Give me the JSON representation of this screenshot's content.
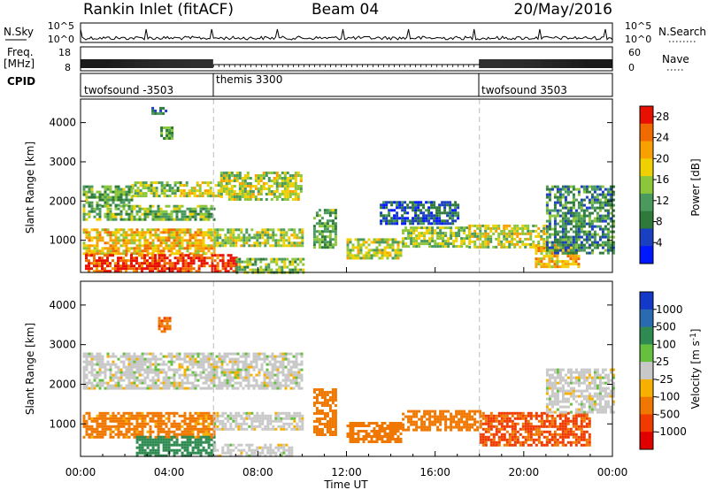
{
  "header": {
    "station": "Rankin Inlet (fitACF)",
    "beam": "Beam 04",
    "date": "20/May/2016"
  },
  "nsky_panel": {
    "left_label": "N.Sky",
    "right_label": "N.Search",
    "left_ticks": [
      "10^5",
      "10^0"
    ],
    "right_ticks": [
      "10^5",
      "10^0"
    ],
    "colors": {
      "nsky": "#000000",
      "nsearch": "#000000"
    }
  },
  "freq_panel": {
    "left_label_top": "Freq.",
    "left_label_unit": "[MHz]",
    "right_label": "Nave",
    "left_ticks": [
      "18",
      "8"
    ],
    "right_ticks": [
      "60",
      "0"
    ]
  },
  "cpid_panel": {
    "label": "CPID",
    "programs": [
      {
        "name": "twofsound -3503",
        "start_hour": 0
      },
      {
        "name": "themis 3300",
        "start_hour": 6
      },
      {
        "name": "twofsound 3503",
        "start_hour": 18
      }
    ]
  },
  "time_axis": {
    "label": "Time UT",
    "tick_labels": [
      "00:00",
      "04:00",
      "08:00",
      "12:00",
      "16:00",
      "20:00",
      "00:00"
    ]
  },
  "chart_data": [
    {
      "type": "heatmap",
      "name": "power",
      "x_range_hours": [
        0,
        24
      ],
      "y_range_km": [
        180,
        4600
      ],
      "ylabel": "Slant Range [km]",
      "y_tick_labels": [
        "1000",
        "2000",
        "3000",
        "4000"
      ],
      "y_ticks": [
        1000,
        2000,
        3000,
        4000
      ],
      "colorbar": {
        "label": "Power [dB]",
        "tick_labels": [
          "28",
          "24",
          "20",
          "16",
          "12",
          "8",
          "4"
        ],
        "ticks": [
          28,
          24,
          20,
          16,
          12,
          8,
          4
        ],
        "range": [
          0,
          30
        ],
        "colors": [
          "#0018ff",
          "#1a3fc0",
          "#2e7a3a",
          "#4a9a5e",
          "#8cc63a",
          "#f0d000",
          "#f8a000",
          "#f06a00",
          "#e81000"
        ]
      },
      "regions": [
        {
          "t": [
            0.1,
            2.3
          ],
          "r": [
            1900,
            2400
          ],
          "v": 12
        },
        {
          "t": [
            2.3,
            4.5
          ],
          "r": [
            2150,
            2500
          ],
          "v": 14
        },
        {
          "t": [
            4.5,
            6.3
          ],
          "r": [
            2100,
            2500
          ],
          "v": 18
        },
        {
          "t": [
            6.3,
            9.9
          ],
          "r": [
            2050,
            2750
          ],
          "v": 16
        },
        {
          "t": [
            0.1,
            6.0
          ],
          "r": [
            1500,
            1900
          ],
          "v": 13
        },
        {
          "t": [
            0.1,
            6.0
          ],
          "r": [
            650,
            1300
          ],
          "v": 20
        },
        {
          "t": [
            6.0,
            10.0
          ],
          "r": [
            850,
            1300
          ],
          "v": 16
        },
        {
          "t": [
            0.2,
            3.5
          ],
          "r": [
            180,
            650
          ],
          "v": 27
        },
        {
          "t": [
            3.5,
            7.0
          ],
          "r": [
            180,
            650
          ],
          "v": 28
        },
        {
          "t": [
            7.0,
            10.0
          ],
          "r": [
            180,
            550
          ],
          "v": 14
        },
        {
          "t": [
            10.5,
            11.5
          ],
          "r": [
            800,
            1800
          ],
          "v": 12
        },
        {
          "t": [
            12.0,
            14.5
          ],
          "r": [
            550,
            1050
          ],
          "v": 16
        },
        {
          "t": [
            14.5,
            17.5
          ],
          "r": [
            850,
            1350
          ],
          "v": 15
        },
        {
          "t": [
            17.5,
            21.0
          ],
          "r": [
            850,
            1400
          ],
          "v": 17
        },
        {
          "t": [
            20.5,
            22.5
          ],
          "r": [
            350,
            900
          ],
          "v": 20
        },
        {
          "t": [
            21.0,
            24.0
          ],
          "r": [
            700,
            2400
          ],
          "v": 10
        },
        {
          "t": [
            13.5,
            17.0
          ],
          "r": [
            1400,
            2000
          ],
          "v": 6
        },
        {
          "t": [
            3.2,
            3.9
          ],
          "r": [
            4200,
            4400
          ],
          "v": 8
        },
        {
          "t": [
            3.6,
            4.1
          ],
          "r": [
            3600,
            3900
          ],
          "v": 12
        }
      ]
    },
    {
      "type": "heatmap",
      "name": "velocity",
      "x_range_hours": [
        0,
        24
      ],
      "y_range_km": [
        180,
        4600
      ],
      "ylabel": "Slant Range [km]",
      "y_tick_labels": [
        "1000",
        "2000",
        "3000",
        "4000"
      ],
      "y_ticks": [
        1000,
        2000,
        3000,
        4000
      ],
      "colorbar": {
        "label": "Velocity [m s-1]",
        "label_main": "Velocity [m s",
        "label_sup": "-1",
        "label_end": "]",
        "tick_labels": [
          "1000",
          "500",
          "100",
          "25",
          "-25",
          "-100",
          "-500",
          "-1000"
        ],
        "ticks": [
          1000,
          500,
          100,
          25,
          -25,
          -100,
          -500,
          -1000
        ],
        "colors": [
          "#1438c8",
          "#2a6ab0",
          "#2e8a50",
          "#66c040",
          "#c8c8c8",
          "#f8b000",
          "#f07800",
          "#f03a00",
          "#e00000"
        ]
      },
      "regions": [
        {
          "t": [
            0.1,
            10.0
          ],
          "r": [
            1900,
            2800
          ],
          "v": 0
        },
        {
          "t": [
            0.1,
            6.0
          ],
          "r": [
            650,
            1300
          ],
          "v": -150
        },
        {
          "t": [
            2.5,
            6.0
          ],
          "r": [
            180,
            700
          ],
          "v": 200
        },
        {
          "t": [
            6.0,
            10.0
          ],
          "r": [
            850,
            1300
          ],
          "v": 0
        },
        {
          "t": [
            6.0,
            9.5
          ],
          "r": [
            180,
            500
          ],
          "v": 0
        },
        {
          "t": [
            10.5,
            11.5
          ],
          "r": [
            700,
            1900
          ],
          "v": -300
        },
        {
          "t": [
            12.0,
            14.5
          ],
          "r": [
            550,
            1050
          ],
          "v": -250
        },
        {
          "t": [
            14.5,
            18.0
          ],
          "r": [
            850,
            1350
          ],
          "v": -200
        },
        {
          "t": [
            18.0,
            23.0
          ],
          "r": [
            450,
            1300
          ],
          "v": -600
        },
        {
          "t": [
            21.0,
            24.0
          ],
          "r": [
            1300,
            2400
          ],
          "v": 0
        },
        {
          "t": [
            3.5,
            4.0
          ],
          "r": [
            3300,
            3700
          ],
          "v": -400
        }
      ]
    }
  ]
}
